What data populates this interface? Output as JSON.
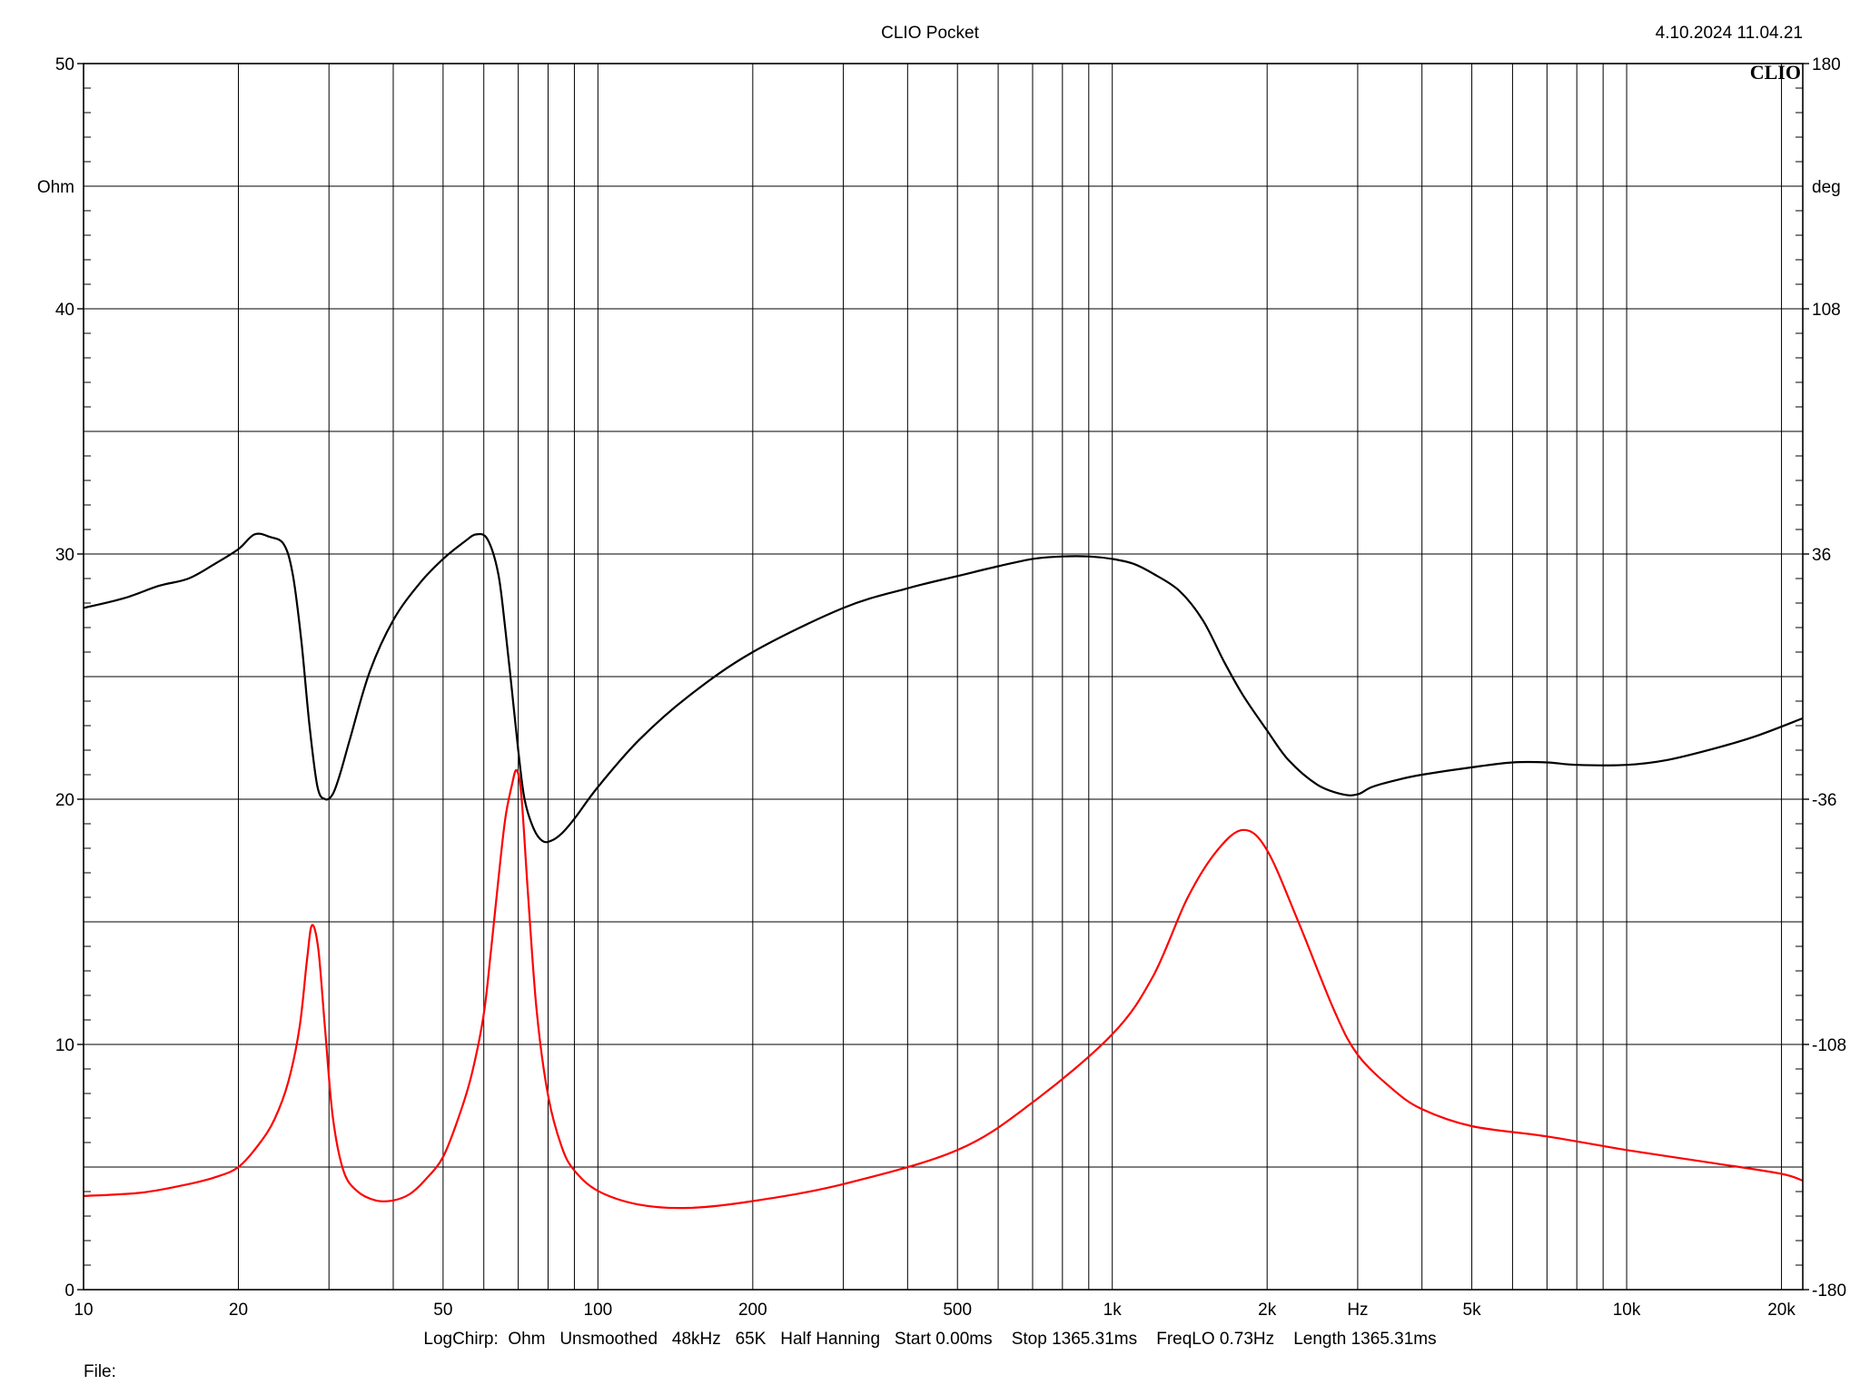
{
  "header": {
    "title": "CLIO Pocket",
    "datetime": "4.10.2024 11.04.21",
    "logo": "CLIO"
  },
  "footer": {
    "settings": "LogChirp:  Ohm   Unsmoothed   48kHz   65K   Half Hanning   Start 0.00ms    Stop 1365.31ms    FreqLO 0.73Hz    Length 1365.31ms",
    "file_label": "File:"
  },
  "chart_data": {
    "type": "line",
    "x_scale": "log",
    "xlim": [
      10,
      22000
    ],
    "x_ticks": [
      10,
      20,
      50,
      100,
      200,
      500,
      1000,
      2000,
      5000,
      10000,
      20000
    ],
    "x_tick_labels": [
      "10",
      "20",
      "50",
      "100",
      "200",
      "500",
      "1k",
      "2k",
      "5k",
      "10k",
      "20k"
    ],
    "x_unit": "Hz",
    "left_axis": {
      "unit": "Ohm",
      "ylim": [
        0,
        50
      ],
      "ticks": [
        0,
        10,
        20,
        30,
        40,
        50
      ],
      "tick_labels": [
        "0",
        "10",
        "20",
        "30",
        "40",
        "50"
      ]
    },
    "right_axis": {
      "unit": "deg",
      "ylim": [
        -180,
        180
      ],
      "ticks": [
        -180,
        -108,
        -36,
        36,
        108,
        180
      ],
      "tick_labels": [
        "-180",
        "-108",
        "-36",
        "36",
        "108",
        "180"
      ]
    },
    "grid": true,
    "series": [
      {
        "axis": "left",
        "color": "#000000",
        "x": [
          10,
          12,
          14,
          16,
          18,
          20,
          21.5,
          23,
          24.5,
          25.5,
          26.5,
          27.5,
          28.5,
          29.5,
          30.5,
          31.5,
          33,
          36,
          40,
          45,
          50,
          55,
          58,
          61,
          64,
          66,
          68,
          70,
          72,
          75,
          78,
          81,
          85,
          90,
          100,
          120,
          150,
          200,
          300,
          400,
          500,
          600,
          700,
          800,
          900,
          1000,
          1100,
          1200,
          1350,
          1500,
          1650,
          1800,
          2000,
          2200,
          2500,
          2800,
          3000,
          3200,
          3600,
          4000,
          5000,
          6000,
          7000,
          8000,
          10000,
          12000,
          15000,
          18000,
          22000
        ],
        "y": [
          27.8,
          28.2,
          28.7,
          29.0,
          29.6,
          30.2,
          30.8,
          30.7,
          30.4,
          29.2,
          26.5,
          23.0,
          20.5,
          20.0,
          20.2,
          21.0,
          22.5,
          25.2,
          27.3,
          28.8,
          29.8,
          30.5,
          30.8,
          30.6,
          29.2,
          27.0,
          24.5,
          22.0,
          20.0,
          18.8,
          18.3,
          18.3,
          18.6,
          19.2,
          20.5,
          22.4,
          24.2,
          26.0,
          27.8,
          28.6,
          29.1,
          29.5,
          29.8,
          29.9,
          29.9,
          29.8,
          29.6,
          29.2,
          28.5,
          27.3,
          25.6,
          24.2,
          22.8,
          21.6,
          20.6,
          20.2,
          20.2,
          20.5,
          20.8,
          21.0,
          21.3,
          21.5,
          21.5,
          21.4,
          21.4,
          21.6,
          22.1,
          22.6,
          23.3
        ]
      },
      {
        "axis": "right",
        "color": "#ff0000",
        "x": [
          10,
          13,
          16,
          18,
          20,
          22,
          23.5,
          25,
          26.3,
          27.2,
          27.8,
          28.6,
          29.5,
          30.5,
          32,
          34,
          37,
          40,
          43,
          46,
          50,
          54,
          57,
          60,
          62,
          64,
          66,
          68,
          69.5,
          71,
          73,
          76,
          80,
          85,
          90,
          100,
          120,
          150,
          200,
          300,
          500,
          700,
          1000,
          1200,
          1400,
          1600,
          1800,
          2000,
          2300,
          2700,
          3000,
          3500,
          4000,
          5000,
          7000,
          10000,
          15000,
          20000,
          22000
        ],
        "y": [
          -152.5,
          -151.5,
          -149,
          -147,
          -144,
          -137,
          -130,
          -119,
          -103,
          -83,
          -73,
          -80,
          -104,
          -129,
          -145,
          -151,
          -153.8,
          -153.8,
          -152,
          -148,
          -141,
          -128,
          -116,
          -99,
          -80,
          -60,
          -42,
          -32,
          -27.5,
          -35,
          -62,
          -98,
          -123,
          -138,
          -145,
          -151,
          -155,
          -156,
          -154,
          -149,
          -139,
          -125,
          -105,
          -88,
          -65,
          -51,
          -45,
          -51,
          -72,
          -98,
          -111,
          -121,
          -127,
          -132,
          -135,
          -139,
          -143,
          -146,
          -148
        ]
      }
    ]
  }
}
